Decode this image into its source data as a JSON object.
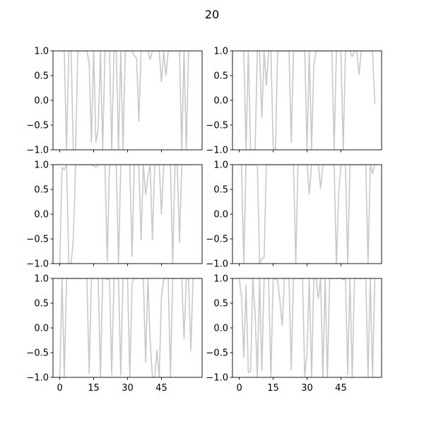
{
  "chart_data": {
    "type": "line",
    "title": "20",
    "layout": "3 rows x 2 columns, shared x axis",
    "line_color": "#c8c8c8",
    "xticks": [
      0,
      15,
      30,
      45
    ],
    "yticks": [
      -1.0,
      -0.5,
      0.0,
      0.5,
      1.0
    ],
    "ytick_labels": [
      "−1.0",
      "−0.5",
      "0.0",
      "0.5",
      "1.0"
    ],
    "xlim": [
      -3,
      63
    ],
    "ylim": [
      -1,
      1
    ],
    "grid": false,
    "panels": [
      {
        "x": [
          0,
          2,
          3,
          4,
          5,
          6,
          7,
          8,
          9,
          10,
          11,
          12,
          13,
          14,
          15,
          16,
          17,
          18,
          19,
          20,
          21,
          22,
          23,
          24,
          25,
          26,
          27,
          28,
          29,
          30,
          31,
          32,
          33,
          34,
          35,
          36,
          37,
          38,
          39,
          40,
          41,
          42,
          43,
          44,
          45,
          46,
          47,
          48,
          49,
          50,
          51,
          52,
          53,
          54,
          55,
          56,
          57,
          58,
          59,
          60
        ],
        "y": [
          1,
          1,
          -1,
          1,
          1,
          -1,
          -1,
          1,
          1,
          1,
          1,
          1,
          0.75,
          -0.85,
          1,
          -0.85,
          -0.6,
          1,
          -1,
          1,
          1,
          1,
          -1,
          1,
          1,
          -1,
          1,
          -1,
          1,
          1,
          1,
          1,
          0.9,
          0.85,
          -0.42,
          1,
          1,
          1,
          1,
          0.82,
          1,
          1,
          1,
          1,
          0.38,
          1,
          0.5,
          1,
          1,
          1,
          1,
          1,
          1,
          -1,
          1,
          -1,
          1,
          1,
          1,
          1
        ]
      },
      {
        "x": [
          0,
          2,
          3,
          4,
          5,
          6,
          7,
          8,
          9,
          10,
          11,
          12,
          13,
          14,
          15,
          16,
          17,
          18,
          19,
          20,
          21,
          22,
          23,
          24,
          25,
          26,
          27,
          28,
          29,
          30,
          31,
          32,
          33,
          34,
          35,
          36,
          37,
          38,
          39,
          40,
          41,
          42,
          43,
          44,
          45,
          46,
          47,
          48,
          49,
          50,
          51,
          52,
          53,
          54,
          55,
          56,
          57,
          58,
          59,
          60
        ],
        "y": [
          1,
          1,
          -1,
          1,
          -1,
          -1,
          -1,
          1,
          1,
          -0.35,
          1,
          0.3,
          1,
          1,
          -0.95,
          -1,
          1,
          1,
          1,
          1,
          1,
          1,
          -0.85,
          1,
          1,
          1,
          1,
          1,
          1,
          -1,
          1,
          -1,
          0.7,
          1,
          1,
          1,
          1,
          1,
          1,
          1,
          1,
          -1,
          1,
          1,
          1,
          -1,
          1,
          1,
          1,
          0.88,
          1,
          1,
          0.52,
          1,
          1,
          1,
          1,
          1,
          1,
          -0.08
        ]
      },
      {
        "x": [
          0,
          1,
          2,
          3,
          4,
          5,
          6,
          7,
          8,
          9,
          10,
          11,
          12,
          13,
          14,
          15,
          16,
          17,
          18,
          19,
          20,
          21,
          22,
          23,
          24,
          25,
          26,
          27,
          28,
          29,
          30,
          31,
          32,
          33,
          34,
          35,
          36,
          37,
          38,
          39,
          40,
          41,
          42,
          43,
          44,
          45,
          46,
          47,
          48,
          49,
          50,
          51,
          52,
          53,
          54,
          55,
          56,
          57,
          58,
          59,
          60
        ],
        "y": [
          -1,
          0.95,
          0.9,
          1,
          -1,
          -1,
          -0.5,
          1,
          1,
          1,
          1,
          1,
          1,
          1,
          1,
          0.98,
          0.95,
          1,
          1,
          1,
          1,
          -0.95,
          1,
          1,
          1,
          1,
          -1,
          1,
          1,
          1,
          1,
          1,
          -0.85,
          1,
          1,
          1,
          -0.52,
          1,
          0.4,
          0.75,
          1,
          -0.52,
          1,
          1,
          1,
          0,
          1,
          1,
          1,
          1,
          -1,
          1,
          1,
          -0.57,
          1,
          1,
          1,
          1,
          1,
          1,
          1
        ]
      },
      {
        "x": [
          0,
          1,
          2,
          3,
          4,
          5,
          6,
          7,
          8,
          9,
          10,
          11,
          12,
          13,
          14,
          15,
          16,
          17,
          18,
          19,
          20,
          21,
          22,
          23,
          24,
          25,
          26,
          27,
          28,
          29,
          30,
          31,
          32,
          33,
          34,
          35,
          36,
          37,
          38,
          39,
          40,
          41,
          42,
          43,
          44,
          45,
          46,
          47,
          48,
          49,
          50,
          51,
          52,
          53,
          54,
          55,
          56,
          57,
          58,
          59,
          60
        ],
        "y": [
          1,
          1,
          -1,
          1,
          1,
          1,
          1,
          1,
          1,
          -1,
          -0.9,
          -0.87,
          1,
          1,
          1,
          1,
          1,
          1,
          1,
          1,
          1,
          1,
          1,
          1,
          1,
          -1,
          1,
          1,
          1,
          1,
          1,
          0.4,
          1,
          1,
          1,
          1,
          0.52,
          1,
          1,
          1,
          1,
          1,
          1,
          -1,
          0.4,
          1,
          1,
          1,
          -1,
          1,
          1,
          1,
          1,
          1,
          1,
          1,
          1,
          -1,
          1,
          0.82,
          1
        ]
      },
      {
        "x": [
          0,
          1,
          2,
          3,
          4,
          5,
          6,
          7,
          8,
          9,
          10,
          11,
          12,
          13,
          14,
          15,
          16,
          17,
          18,
          19,
          20,
          21,
          22,
          23,
          24,
          25,
          26,
          27,
          28,
          29,
          30,
          31,
          32,
          33,
          34,
          35,
          36,
          37,
          38,
          39,
          40,
          41,
          42,
          43,
          44,
          45,
          46,
          47,
          48,
          49,
          50,
          51,
          52,
          53,
          54,
          55,
          56,
          57,
          58,
          59,
          60
        ],
        "y": [
          -1,
          1,
          -1,
          1,
          1,
          1,
          1,
          1,
          1,
          1,
          1,
          1,
          1,
          -0.92,
          1,
          1,
          1,
          1,
          -1,
          1,
          1,
          0.98,
          1,
          -0.95,
          1,
          1,
          1,
          -0.95,
          1,
          1,
          1,
          -1,
          0.9,
          1,
          1,
          1,
          1,
          1,
          -0.7,
          1,
          -0.25,
          -1,
          -1,
          -0.45,
          -1,
          0.6,
          1,
          1,
          1,
          -1,
          1,
          1,
          1,
          1,
          1,
          -0.22,
          1,
          1,
          -0.46,
          1,
          1
        ]
      },
      {
        "x": [
          0,
          1,
          2,
          3,
          4,
          5,
          6,
          7,
          8,
          9,
          10,
          11,
          12,
          13,
          14,
          15,
          16,
          17,
          18,
          19,
          20,
          21,
          22,
          23,
          24,
          25,
          26,
          27,
          28,
          29,
          30,
          31,
          32,
          33,
          34,
          35,
          36,
          37,
          38,
          39,
          40,
          41,
          42,
          43,
          44,
          45,
          46,
          47,
          48,
          49,
          50,
          51,
          52,
          53,
          54,
          55,
          56,
          57,
          58,
          59,
          60
        ],
        "y": [
          1,
          0.62,
          -0.6,
          0.86,
          -0.9,
          -0.88,
          1,
          0.3,
          -1,
          1,
          -0.86,
          1,
          1,
          1,
          -1,
          1,
          1,
          0.95,
          0.55,
          0.05,
          1,
          1,
          1,
          -0.84,
          1,
          1,
          1,
          1,
          1,
          -1,
          -0.5,
          1,
          -1,
          1,
          1,
          0.6,
          1,
          -1,
          1,
          -1,
          1,
          1,
          1,
          1,
          1,
          1,
          0.97,
          1,
          -0.95,
          1,
          -1,
          1,
          1,
          1,
          1,
          1,
          1,
          -1,
          1,
          -1,
          1
        ]
      }
    ]
  }
}
